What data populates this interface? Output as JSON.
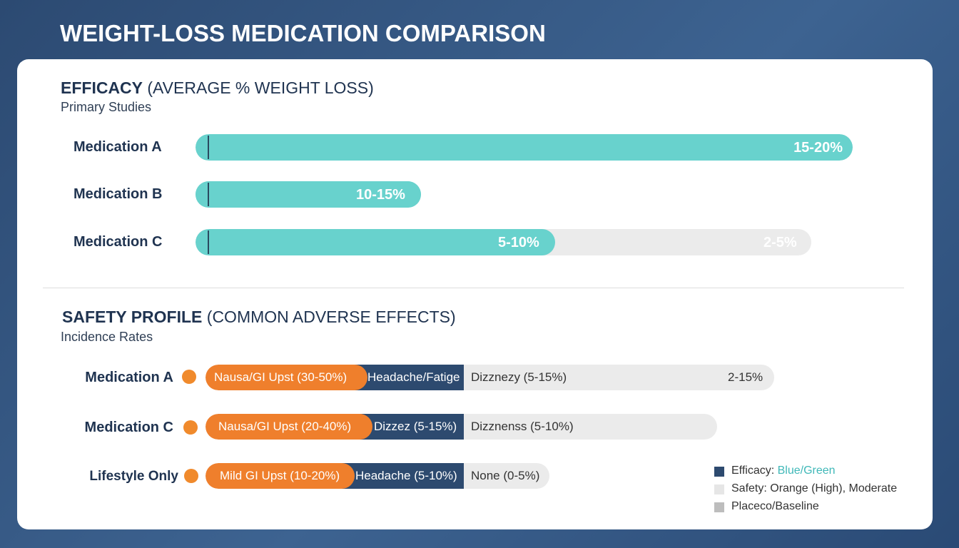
{
  "title": "WEIGHT-LOSS MEDICATION COMPARISON",
  "efficacy": {
    "heading_bold": "EFFICACY",
    "heading_rest": "(AVERAGE % WEIGHT LOSS)",
    "subtitle": "Primary Studies",
    "rows": [
      {
        "label": "Medication A",
        "value_label": "15-20%"
      },
      {
        "label": "Medication B",
        "value_label": "10-15%"
      },
      {
        "label": "Medication C",
        "value_label": "5-10%",
        "secondary_label": "2-5%"
      }
    ]
  },
  "safety": {
    "heading_bold": "SAFETY PROFILE",
    "heading_rest": "(COMMON ADVERSE EFFECTS)",
    "subtitle": "Incidence Rates",
    "rows": [
      {
        "label": "Medication A",
        "segments": [
          "Nausa/GI Upst (30-50%)",
          "Headache/Fatige",
          "Dizznezy (5-15%)",
          "2-15%"
        ]
      },
      {
        "label": "Medication C",
        "segments": [
          "Nausa/GI Upst (20-40%)",
          "Dizzez (5-15%)",
          "Dizznenss (5-10%)"
        ]
      },
      {
        "label": "Lifestyle Only",
        "segments": [
          "Mild GI Upst (10-20%)",
          "Headache (5-10%)",
          "None (0-5%)"
        ]
      }
    ]
  },
  "legend": [
    {
      "label": "Efficacy:",
      "highlight": "Blue/Green"
    },
    {
      "label": "Safety: Orange (High), Moderate"
    },
    {
      "label": "Placeco/Baseline"
    }
  ]
}
